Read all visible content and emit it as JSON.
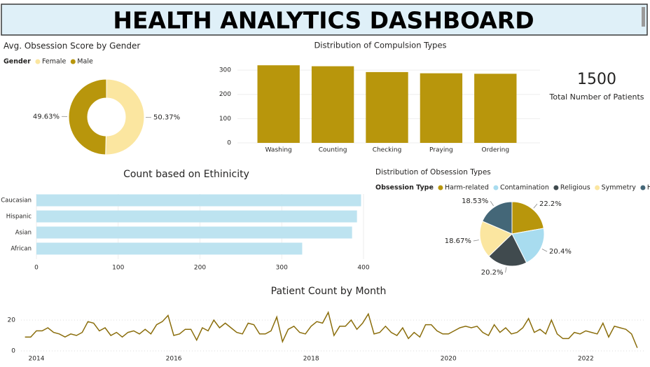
{
  "header": {
    "title": "HEALTH ANALYTICS DASHBOARD"
  },
  "kpi": {
    "value": 1500,
    "label": "Total Number of Patients"
  },
  "chart_data": [
    {
      "type": "donut",
      "title": "Avg. Obsession Score by Gender",
      "legend_title": "Gender",
      "categories": [
        "Female",
        "Male"
      ],
      "values": [
        50.37,
        49.63
      ],
      "value_labels": [
        "50.37%",
        "49.63%"
      ],
      "colors": [
        "#fbe6a0",
        "#b8960c"
      ],
      "legend": "top-left"
    },
    {
      "type": "bar",
      "title": "Distribution of Compulsion Types",
      "categories": [
        "Washing",
        "Counting",
        "Checking",
        "Praying",
        "Ordering"
      ],
      "values": [
        320,
        316,
        292,
        287,
        285
      ],
      "color": "#b8960c",
      "ylim": [
        0,
        335
      ],
      "yticks": [
        0,
        100,
        200,
        300
      ],
      "grid": true
    },
    {
      "type": "barh",
      "title": "Count based on Ethinicity",
      "categories": [
        "Caucasian",
        "Hispanic",
        "Asian",
        "African"
      ],
      "values": [
        397,
        392,
        386,
        325
      ],
      "color": "#bde3f0",
      "xlim": [
        0,
        400
      ],
      "xticks": [
        0,
        100,
        200,
        300,
        400
      ],
      "grid": true
    },
    {
      "type": "pie",
      "title": "Distribution of Obsession Types",
      "legend_title": "Obsession Type",
      "categories": [
        "Harm-related",
        "Contamination",
        "Religious",
        "Symmetry",
        "Hoarding"
      ],
      "values": [
        22.2,
        20.4,
        20.2,
        18.67,
        18.53
      ],
      "value_labels": [
        "22.2%",
        "20.4%",
        "20.2%",
        "18.67%",
        "18.53%"
      ],
      "colors": [
        "#b8960c",
        "#a8dcef",
        "#404a4e",
        "#fbe6a0",
        "#446778"
      ],
      "legend": "top-left"
    },
    {
      "type": "line",
      "title": "Patient Count by Month",
      "color": "#8a6d0b",
      "x": [
        "2013-11",
        "2013-12",
        "2014-01",
        "2014-02",
        "2014-03",
        "2014-04",
        "2014-05",
        "2014-06",
        "2014-07",
        "2014-08",
        "2014-09",
        "2014-10",
        "2014-11",
        "2014-12",
        "2015-01",
        "2015-02",
        "2015-03",
        "2015-04",
        "2015-05",
        "2015-06",
        "2015-07",
        "2015-08",
        "2015-09",
        "2015-10",
        "2015-11",
        "2015-12",
        "2016-01",
        "2016-02",
        "2016-03",
        "2016-04",
        "2016-05",
        "2016-06",
        "2016-07",
        "2016-08",
        "2016-09",
        "2016-10",
        "2016-11",
        "2016-12",
        "2017-01",
        "2017-02",
        "2017-03",
        "2017-04",
        "2017-05",
        "2017-06",
        "2017-07",
        "2017-08",
        "2017-09",
        "2017-10",
        "2017-11",
        "2017-12",
        "2018-01",
        "2018-02",
        "2018-03",
        "2018-04",
        "2018-05",
        "2018-06",
        "2018-07",
        "2018-08",
        "2018-09",
        "2018-10",
        "2018-11",
        "2018-12",
        "2019-01",
        "2019-02",
        "2019-03",
        "2019-04",
        "2019-05",
        "2019-06",
        "2019-07",
        "2019-08",
        "2019-09",
        "2019-10",
        "2019-11",
        "2019-12",
        "2020-01",
        "2020-02",
        "2020-03",
        "2020-04",
        "2020-05",
        "2020-06",
        "2020-07",
        "2020-08",
        "2020-09",
        "2020-10",
        "2020-11",
        "2020-12",
        "2021-01",
        "2021-02",
        "2021-03",
        "2021-04",
        "2021-05",
        "2021-06",
        "2021-07",
        "2021-08",
        "2021-09",
        "2021-10",
        "2021-11",
        "2021-12",
        "2022-01",
        "2022-02",
        "2022-03",
        "2022-04",
        "2022-05",
        "2022-06",
        "2022-07",
        "2022-08",
        "2022-09",
        "2022-10"
      ],
      "values": [
        9,
        9,
        13,
        13,
        15,
        12,
        11,
        9,
        11,
        10,
        12,
        19,
        18,
        13,
        15,
        10,
        12,
        9,
        12,
        13,
        11,
        14,
        11,
        17,
        19,
        23,
        10,
        11,
        14,
        14,
        7,
        15,
        13,
        20,
        15,
        18,
        15,
        12,
        11,
        18,
        17,
        11,
        11,
        13,
        22,
        6,
        14,
        16,
        12,
        11,
        16,
        19,
        18,
        25,
        10,
        16,
        16,
        20,
        14,
        18,
        24,
        11,
        12,
        16,
        12,
        10,
        15,
        8,
        12,
        9,
        17,
        17,
        13,
        11,
        11,
        13,
        15,
        16,
        15,
        16,
        12,
        10,
        17,
        12,
        15,
        11,
        12,
        15,
        21,
        12,
        14,
        11,
        20,
        11,
        8,
        8,
        12,
        11,
        13,
        12,
        11,
        18,
        9,
        16,
        15,
        14,
        11,
        2
      ],
      "ylim": [
        0,
        26
      ],
      "yticks": [
        0,
        20
      ],
      "xticks": [
        {
          "value": "2014-01",
          "label": "2014"
        },
        {
          "value": "2016-01",
          "label": "2016"
        },
        {
          "value": "2018-01",
          "label": "2018"
        },
        {
          "value": "2020-01",
          "label": "2020"
        },
        {
          "value": "2022-01",
          "label": "2022"
        }
      ],
      "grid": true
    }
  ]
}
